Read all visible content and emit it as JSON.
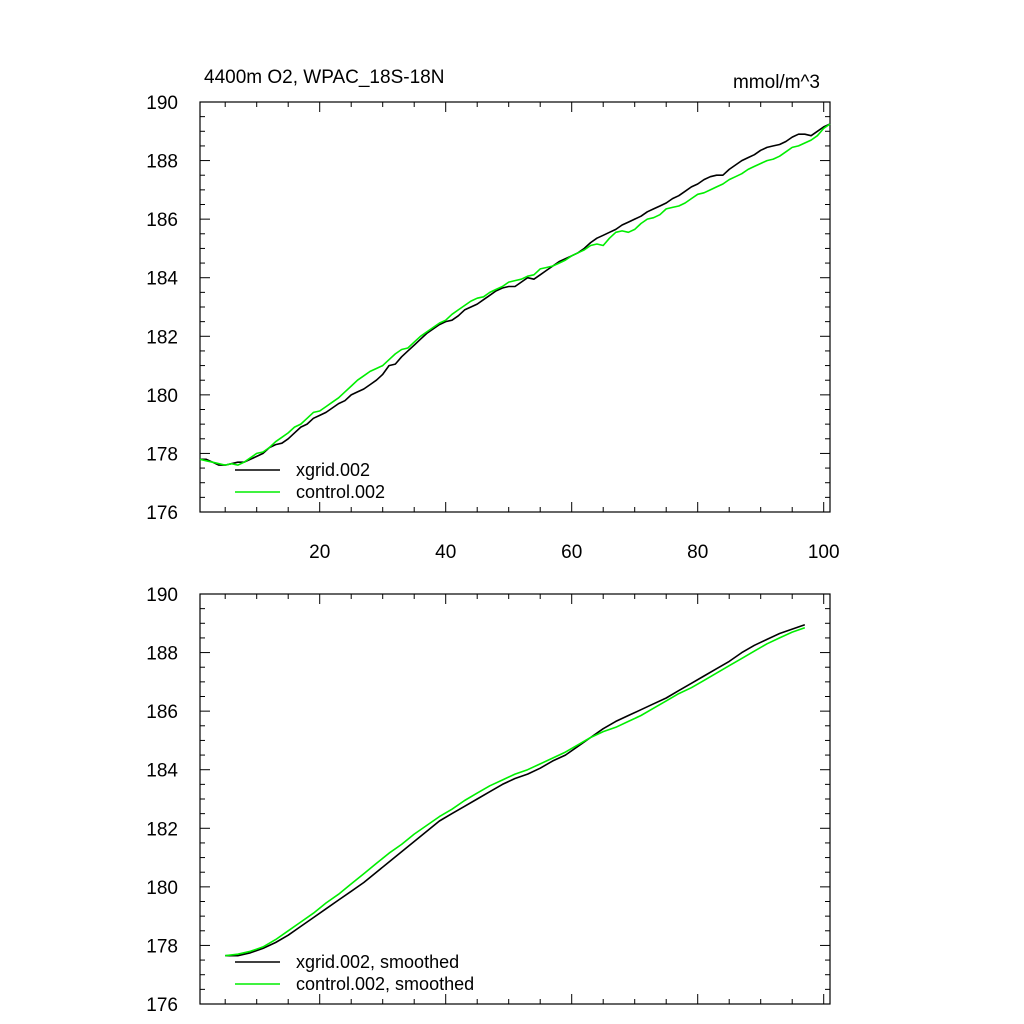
{
  "chart_data": [
    {
      "type": "line",
      "title": "4400m O2, WPAC_18S-18N",
      "units": "mmol/m^3",
      "xlabel": "",
      "ylabel": "",
      "xlim": [
        1,
        101
      ],
      "ylim": [
        176,
        190
      ],
      "x_ticks": [
        20,
        40,
        60,
        80,
        100
      ],
      "x_tick_labels": [
        "20",
        "40",
        "60",
        "80",
        "100"
      ],
      "y_ticks": [
        176,
        178,
        180,
        182,
        184,
        186,
        188,
        190
      ],
      "y_tick_labels": [
        "176",
        "178",
        "180",
        "182",
        "184",
        "186",
        "188",
        "190"
      ],
      "legend_position": "bottom-left",
      "series": [
        {
          "name": "xgrid.002",
          "color": "#000000",
          "x": [
            1,
            2,
            3,
            4,
            5,
            6,
            7,
            8,
            9,
            10,
            11,
            12,
            13,
            14,
            15,
            16,
            17,
            18,
            19,
            20,
            21,
            22,
            23,
            24,
            25,
            26,
            27,
            28,
            29,
            30,
            31,
            32,
            33,
            34,
            35,
            36,
            37,
            38,
            39,
            40,
            41,
            42,
            43,
            44,
            45,
            46,
            47,
            48,
            49,
            50,
            51,
            52,
            53,
            54,
            55,
            56,
            57,
            58,
            59,
            60,
            61,
            62,
            63,
            64,
            65,
            66,
            67,
            68,
            69,
            70,
            71,
            72,
            73,
            74,
            75,
            76,
            77,
            78,
            79,
            80,
            81,
            82,
            83,
            84,
            85,
            86,
            87,
            88,
            89,
            90,
            91,
            92,
            93,
            94,
            95,
            96,
            97,
            98,
            99,
            100,
            101
          ],
          "values": [
            177.8,
            177.8,
            177.7,
            177.6,
            177.6,
            177.65,
            177.7,
            177.7,
            177.8,
            177.9,
            178.0,
            178.2,
            178.3,
            178.35,
            178.5,
            178.7,
            178.9,
            179.0,
            179.2,
            179.3,
            179.4,
            179.55,
            179.7,
            179.8,
            180.0,
            180.1,
            180.2,
            180.35,
            180.5,
            180.7,
            181.0,
            181.05,
            181.3,
            181.5,
            181.7,
            181.9,
            182.1,
            182.25,
            182.4,
            182.5,
            182.55,
            182.7,
            182.9,
            183.0,
            183.1,
            183.25,
            183.4,
            183.55,
            183.65,
            183.7,
            183.7,
            183.85,
            184.0,
            183.95,
            184.1,
            184.25,
            184.4,
            184.55,
            184.65,
            184.75,
            184.85,
            185.0,
            185.2,
            185.35,
            185.45,
            185.55,
            185.65,
            185.8,
            185.9,
            186.0,
            186.1,
            186.25,
            186.35,
            186.45,
            186.55,
            186.7,
            186.8,
            186.95,
            187.1,
            187.2,
            187.35,
            187.45,
            187.5,
            187.5,
            187.7,
            187.85,
            188.0,
            188.1,
            188.2,
            188.35,
            188.45,
            188.5,
            188.55,
            188.65,
            188.8,
            188.9,
            188.9,
            188.85,
            189.0,
            189.15,
            189.25
          ]
        },
        {
          "name": "control.002",
          "color": "#00ee00",
          "x": [
            1,
            2,
            3,
            4,
            5,
            6,
            7,
            8,
            9,
            10,
            11,
            12,
            13,
            14,
            15,
            16,
            17,
            18,
            19,
            20,
            21,
            22,
            23,
            24,
            25,
            26,
            27,
            28,
            29,
            30,
            31,
            32,
            33,
            34,
            35,
            36,
            37,
            38,
            39,
            40,
            41,
            42,
            43,
            44,
            45,
            46,
            47,
            48,
            49,
            50,
            51,
            52,
            53,
            54,
            55,
            56,
            57,
            58,
            59,
            60,
            61,
            62,
            63,
            64,
            65,
            66,
            67,
            68,
            69,
            70,
            71,
            72,
            73,
            74,
            75,
            76,
            77,
            78,
            79,
            80,
            81,
            82,
            83,
            84,
            85,
            86,
            87,
            88,
            89,
            90,
            91,
            92,
            93,
            94,
            95,
            96,
            97,
            98,
            99,
            100,
            101
          ],
          "values": [
            177.8,
            177.75,
            177.7,
            177.65,
            177.6,
            177.65,
            177.6,
            177.7,
            177.85,
            178.0,
            178.05,
            178.2,
            178.4,
            178.55,
            178.7,
            178.9,
            179.0,
            179.2,
            179.4,
            179.45,
            179.6,
            179.75,
            179.9,
            180.1,
            180.3,
            180.5,
            180.65,
            180.8,
            180.9,
            181.0,
            181.2,
            181.4,
            181.55,
            181.6,
            181.8,
            182.0,
            182.15,
            182.3,
            182.45,
            182.55,
            182.75,
            182.9,
            183.05,
            183.2,
            183.3,
            183.35,
            183.5,
            183.6,
            183.7,
            183.85,
            183.9,
            183.95,
            184.05,
            184.1,
            184.3,
            184.35,
            184.4,
            184.5,
            184.6,
            184.75,
            184.85,
            184.95,
            185.1,
            185.15,
            185.1,
            185.35,
            185.55,
            185.6,
            185.55,
            185.65,
            185.85,
            186.0,
            186.05,
            186.15,
            186.35,
            186.4,
            186.45,
            186.55,
            186.7,
            186.85,
            186.9,
            187.0,
            187.1,
            187.2,
            187.35,
            187.45,
            187.55,
            187.7,
            187.8,
            187.9,
            188.0,
            188.05,
            188.15,
            188.3,
            188.45,
            188.5,
            188.6,
            188.7,
            188.85,
            189.1,
            189.25
          ]
        }
      ]
    },
    {
      "type": "line",
      "title": "",
      "xlabel": "",
      "ylabel": "",
      "xlim": [
        1,
        101
      ],
      "ylim": [
        176,
        190
      ],
      "x_ticks": [
        20,
        40,
        60,
        80,
        100
      ],
      "x_tick_labels": [],
      "y_ticks": [
        176,
        178,
        180,
        182,
        184,
        186,
        188,
        190
      ],
      "y_tick_labels": [
        "176",
        "178",
        "180",
        "182",
        "184",
        "186",
        "188",
        "190"
      ],
      "legend_position": "bottom-left",
      "series": [
        {
          "name": "xgrid.002, smoothed",
          "color": "#000000",
          "x": [
            5,
            7,
            9,
            11,
            13,
            15,
            17,
            19,
            21,
            23,
            25,
            27,
            29,
            31,
            33,
            35,
            37,
            39,
            41,
            43,
            45,
            47,
            49,
            51,
            53,
            55,
            57,
            59,
            61,
            63,
            65,
            67,
            69,
            71,
            73,
            75,
            77,
            79,
            81,
            83,
            85,
            87,
            89,
            91,
            93,
            95,
            97
          ],
          "values": [
            177.65,
            177.65,
            177.75,
            177.9,
            178.1,
            178.35,
            178.65,
            178.95,
            179.25,
            179.55,
            179.85,
            180.15,
            180.5,
            180.85,
            181.2,
            181.55,
            181.9,
            182.25,
            182.5,
            182.75,
            183.0,
            183.25,
            183.5,
            183.7,
            183.85,
            184.05,
            184.3,
            184.5,
            184.8,
            185.1,
            185.4,
            185.65,
            185.85,
            186.05,
            186.25,
            186.45,
            186.7,
            186.95,
            187.2,
            187.45,
            187.7,
            188.0,
            188.25,
            188.45,
            188.65,
            188.8,
            188.95
          ]
        },
        {
          "name": "control.002, smoothed",
          "color": "#00ee00",
          "x": [
            5,
            7,
            9,
            11,
            13,
            15,
            17,
            19,
            21,
            23,
            25,
            27,
            29,
            31,
            33,
            35,
            37,
            39,
            41,
            43,
            45,
            47,
            49,
            51,
            53,
            55,
            57,
            59,
            61,
            63,
            65,
            67,
            69,
            71,
            73,
            75,
            77,
            79,
            81,
            83,
            85,
            87,
            89,
            91,
            93,
            95,
            97
          ],
          "values": [
            177.65,
            177.7,
            177.8,
            177.95,
            178.2,
            178.5,
            178.8,
            179.1,
            179.45,
            179.75,
            180.1,
            180.45,
            180.8,
            181.15,
            181.45,
            181.8,
            182.1,
            182.4,
            182.65,
            182.95,
            183.2,
            183.45,
            183.65,
            183.85,
            184.0,
            184.2,
            184.4,
            184.6,
            184.85,
            185.1,
            185.3,
            185.45,
            185.65,
            185.85,
            186.1,
            186.35,
            186.6,
            186.8,
            187.05,
            187.3,
            187.55,
            187.8,
            188.05,
            188.3,
            188.5,
            188.7,
            188.85
          ]
        }
      ]
    }
  ]
}
